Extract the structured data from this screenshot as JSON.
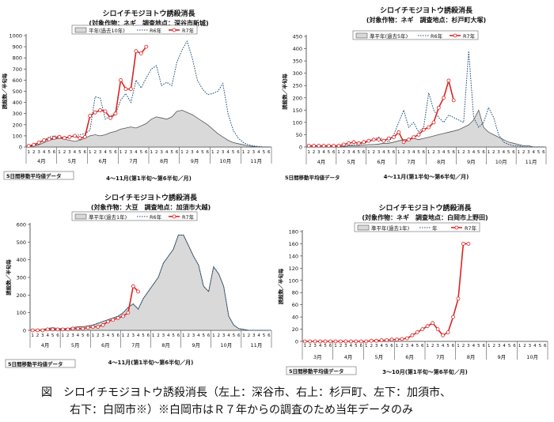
{
  "figure_caption": {
    "line1": "図　シロイチモジヨトウ誘殺消長（左上：深谷市、右上：杉戸町、左下：加須市、",
    "line2": "右下：白岡市※）※白岡市はＲ７年からの調査のため当年データのみ"
  },
  "colors": {
    "normal_fill": "#d9d9d9",
    "normal_line": "#555555",
    "r6": "#1f4e79",
    "r7": "#dd2222",
    "axis": "#333333"
  },
  "chart_data": [
    {
      "type": "line",
      "title": "シロイチモジヨトウ誘殺消長",
      "subtitle": "(対象作物：ネギ　調査地点：深谷市新城)",
      "ylabel": "誘殺数／半旬毎",
      "xlabel": "4～11月(第1半旬～第6半旬／月)",
      "ylim": [
        0,
        1000
      ],
      "yticks": [
        0,
        100,
        200,
        300,
        400,
        500,
        600,
        700,
        800,
        900,
        1000
      ],
      "pentad_labels": [
        "1",
        "2",
        "3",
        "4",
        "5",
        "6",
        "1",
        "2",
        "3",
        "4",
        "5",
        "6",
        "1",
        "2",
        "3",
        "4",
        "5",
        "6",
        "1",
        "2",
        "3",
        "4",
        "5",
        "6",
        "1",
        "2",
        "3",
        "4",
        "5",
        "6",
        "1",
        "2",
        "3",
        "4",
        "5",
        "6",
        "1",
        "2",
        "3",
        "4",
        "5",
        "6",
        "1",
        "2",
        "3",
        "4",
        "5",
        "6"
      ],
      "months": [
        "4月",
        "5月",
        "6月",
        "7月",
        "8月",
        "9月",
        "10月",
        "11月"
      ],
      "legend": [
        "平年(過去10年)",
        "R6年",
        "R7年"
      ],
      "note": "5日間移動平均値データ",
      "series": [
        {
          "name": "平年(過去10年)",
          "values": [
            5,
            10,
            20,
            40,
            60,
            70,
            80,
            70,
            60,
            50,
            60,
            80,
            100,
            110,
            100,
            110,
            130,
            140,
            160,
            170,
            180,
            170,
            190,
            210,
            250,
            270,
            260,
            250,
            270,
            320,
            330,
            310,
            290,
            260,
            230,
            200,
            160,
            120,
            90,
            60,
            40,
            30,
            20,
            10,
            5,
            0,
            0,
            0
          ]
        },
        {
          "name": "R6年",
          "values": [
            5,
            10,
            30,
            60,
            90,
            100,
            90,
            80,
            90,
            100,
            110,
            120,
            150,
            450,
            440,
            250,
            280,
            300,
            420,
            480,
            400,
            600,
            530,
            620,
            700,
            730,
            550,
            580,
            550,
            760,
            870,
            950,
            800,
            600,
            520,
            470,
            480,
            500,
            570,
            300,
            150,
            80,
            40,
            20,
            10,
            5,
            0,
            0
          ]
        },
        {
          "name": "R7年",
          "values": [
            10,
            20,
            40,
            60,
            70,
            80,
            90,
            80,
            90,
            100,
            80,
            90,
            280,
            310,
            330,
            320,
            260,
            300,
            600,
            520,
            520,
            860,
            840,
            900,
            null,
            null,
            null,
            null,
            null,
            null,
            null,
            null,
            null,
            null,
            null,
            null,
            null,
            null,
            null,
            null,
            null,
            null,
            null,
            null,
            null,
            null,
            null,
            null
          ]
        }
      ]
    },
    {
      "type": "line",
      "title": "シロイチモジヨトウ誘殺消長",
      "subtitle": "(対象作物：ネギ　調査地点：杉戸町大塚)",
      "ylabel": "誘殺数／半旬毎",
      "xlabel": "4～11月(第1半旬～第6半旬／月)",
      "ylim": [
        0,
        450
      ],
      "yticks": [
        0,
        50,
        100,
        150,
        200,
        250,
        300,
        350,
        400,
        450
      ],
      "pentad_labels": [
        "1",
        "2",
        "3",
        "4",
        "5",
        "6",
        "1",
        "2",
        "3",
        "4",
        "5",
        "6",
        "1",
        "2",
        "3",
        "4",
        "5",
        "6",
        "1",
        "2",
        "3",
        "4",
        "5",
        "6",
        "1",
        "2",
        "3",
        "4",
        "5",
        "6",
        "1",
        "2",
        "3",
        "4",
        "5",
        "6",
        "1",
        "2",
        "3",
        "4",
        "5",
        "6",
        "1",
        "2",
        "3",
        "4",
        "5",
        "6"
      ],
      "months": [
        "4月",
        "5月",
        "6月",
        "7月",
        "8月",
        "9月",
        "10月",
        "11月"
      ],
      "legend": [
        "準平年(過去5年)",
        "R6年",
        "R7年"
      ],
      "note": "5日間移動平均値データ",
      "series": [
        {
          "name": "準平年(過去5年)",
          "values": [
            0,
            0,
            0,
            0,
            0,
            0,
            2,
            3,
            5,
            5,
            5,
            8,
            10,
            10,
            12,
            15,
            15,
            20,
            25,
            30,
            30,
            35,
            30,
            35,
            40,
            45,
            50,
            55,
            60,
            65,
            70,
            80,
            90,
            110,
            150,
            80,
            60,
            50,
            40,
            30,
            20,
            15,
            10,
            5,
            5,
            0,
            0,
            0
          ]
        },
        {
          "name": "R6年",
          "values": [
            0,
            0,
            0,
            0,
            0,
            0,
            0,
            0,
            5,
            10,
            10,
            15,
            20,
            30,
            40,
            30,
            20,
            50,
            100,
            150,
            80,
            100,
            60,
            80,
            220,
            150,
            120,
            100,
            130,
            120,
            110,
            100,
            390,
            120,
            80,
            100,
            160,
            120,
            50,
            20,
            10,
            5,
            5,
            0,
            0,
            0,
            0,
            0
          ]
        },
        {
          "name": "R7年",
          "values": [
            5,
            5,
            5,
            5,
            5,
            5,
            5,
            10,
            15,
            20,
            15,
            20,
            25,
            30,
            30,
            25,
            35,
            40,
            60,
            20,
            30,
            40,
            50,
            70,
            80,
            100,
            160,
            200,
            270,
            190,
            null,
            null,
            null,
            null,
            null,
            null,
            null,
            null,
            null,
            null,
            null,
            null,
            null,
            null,
            null,
            null,
            null,
            null
          ]
        }
      ]
    },
    {
      "type": "line",
      "title": "シロイチモジヨトウ誘殺消長",
      "subtitle": "(対象作物：大豆　調査地点：加須市大越)",
      "ylabel": "誘殺数／半旬毎",
      "xlabel": "4～11月(第1半旬～第6半旬／月)",
      "ylim": [
        0,
        600
      ],
      "yticks": [
        0,
        100,
        200,
        300,
        400,
        500,
        600
      ],
      "pentad_labels": [
        "1",
        "2",
        "3",
        "4",
        "5",
        "6",
        "1",
        "2",
        "3",
        "4",
        "5",
        "6",
        "1",
        "2",
        "3",
        "4",
        "5",
        "6",
        "1",
        "2",
        "3",
        "4",
        "5",
        "6",
        "1",
        "2",
        "3",
        "4",
        "5",
        "6",
        "1",
        "2",
        "3",
        "4",
        "5",
        "6",
        "1",
        "2",
        "3",
        "4",
        "5",
        "6",
        "1",
        "2",
        "3",
        "4",
        "5",
        "6"
      ],
      "months": [
        "4月",
        "5月",
        "6月",
        "7月",
        "8月",
        "9月",
        "10月",
        "11月"
      ],
      "legend": [
        "準平年(過去1年)",
        "R6年",
        "R7年"
      ],
      "note": "5日間移動平均値データ",
      "series": [
        {
          "name": "準平年(過去1年)",
          "values": [
            0,
            0,
            5,
            10,
            15,
            10,
            10,
            10,
            15,
            20,
            20,
            25,
            30,
            40,
            50,
            60,
            70,
            80,
            100,
            130,
            150,
            120,
            180,
            220,
            260,
            300,
            380,
            420,
            460,
            540,
            540,
            480,
            420,
            370,
            250,
            220,
            360,
            320,
            250,
            80,
            30,
            10,
            5,
            0,
            0,
            0,
            0,
            0
          ]
        },
        {
          "name": "R6年",
          "values": [
            0,
            0,
            5,
            10,
            15,
            10,
            10,
            10,
            15,
            20,
            20,
            25,
            30,
            40,
            50,
            60,
            70,
            80,
            100,
            130,
            150,
            120,
            180,
            220,
            260,
            300,
            380,
            420,
            460,
            540,
            540,
            480,
            420,
            370,
            250,
            220,
            360,
            320,
            250,
            80,
            30,
            10,
            5,
            0,
            0,
            0,
            0,
            0
          ]
        },
        {
          "name": "R7年",
          "values": [
            0,
            0,
            0,
            5,
            5,
            5,
            5,
            5,
            10,
            10,
            10,
            15,
            20,
            20,
            30,
            50,
            60,
            70,
            80,
            100,
            250,
            220,
            null,
            null,
            null,
            null,
            null,
            null,
            null,
            null,
            null,
            null,
            null,
            null,
            null,
            null,
            null,
            null,
            null,
            null,
            null,
            null,
            null,
            null,
            null,
            null,
            null,
            null
          ]
        }
      ]
    },
    {
      "type": "line",
      "title": "シロイチモジヨトウ誘殺消長",
      "subtitle": "(対象作物：ネギ　調査地点：白岡市上野田)",
      "ylabel": "誘殺数／半旬毎",
      "xlabel": "3～10月(第1半旬～第6半旬／月)",
      "ylim": [
        0,
        180
      ],
      "yticks": [
        0,
        20,
        40,
        60,
        80,
        100,
        120,
        140,
        160,
        180
      ],
      "pentad_labels": [
        "1",
        "2",
        "3",
        "4",
        "5",
        "6",
        "1",
        "2",
        "3",
        "4",
        "5",
        "6",
        "1",
        "2",
        "3",
        "4",
        "5",
        "6",
        "1",
        "2",
        "3",
        "4",
        "5",
        "6",
        "1",
        "2",
        "3",
        "4",
        "5",
        "6",
        "1",
        "2",
        "3",
        "4",
        "5",
        "6",
        "1",
        "2",
        "3",
        "4",
        "5",
        "6",
        "1",
        "2",
        "3",
        "4",
        "5",
        "6"
      ],
      "months": [
        "3月",
        "4月",
        "5月",
        "6月",
        "7月",
        "8月",
        "9月",
        "10月"
      ],
      "legend": [
        "準平年(過去1年)",
        "年",
        "R7年"
      ],
      "note": "5日間移動平均値データ",
      "series": [
        {
          "name": "R7年",
          "values": [
            0,
            0,
            0,
            0,
            0,
            0,
            0,
            0,
            0,
            0,
            0,
            0,
            0,
            1,
            1,
            2,
            2,
            3,
            3,
            4,
            5,
            10,
            15,
            20,
            25,
            30,
            20,
            10,
            15,
            40,
            70,
            160,
            160,
            null,
            null,
            null,
            null,
            null,
            null,
            null,
            null,
            null,
            null,
            null,
            null,
            null,
            null,
            null
          ]
        }
      ]
    }
  ]
}
